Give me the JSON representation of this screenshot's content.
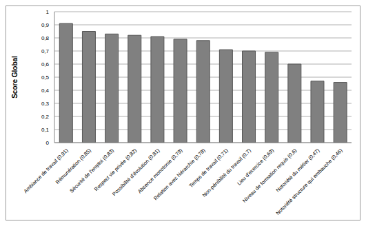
{
  "chart_data": {
    "type": "bar",
    "categories": [
      "Ambiance de travail (0,91)",
      "Rémunération (0,85)",
      "Sécurité de l'emploi (0,83)",
      "Respect vie privée (0,82)",
      "Possibilité d'évolution (0,81)",
      "Absence monotonie (0,79)",
      "Relation avec hiérarchie (0,78)",
      "Temps de travail (0,71)",
      "Non-pénibilité du travail (0,7)",
      "Lieu d'exercice (0,69)",
      "Niveau de formation requis (0,6)",
      "Notoriété du métier (0,47)",
      "Notoriété structure qui embauche (0,46)"
    ],
    "values": [
      0.91,
      0.85,
      0.83,
      0.82,
      0.81,
      0.79,
      0.78,
      0.71,
      0.7,
      0.69,
      0.6,
      0.47,
      0.46
    ],
    "color": "#808080",
    "y_label": "Score Global",
    "ylim": [
      0,
      1
    ],
    "yticks": [
      0,
      {
        "value": 0.1,
        "label": "0,1"
      },
      {
        "value": 0.2,
        "label": "0,2"
      },
      {
        "value": 0.3,
        "label": "0,3"
      },
      {
        "value": 0.4,
        "label": "0,4"
      },
      {
        "value": 0.5,
        "label": "0,5"
      },
      {
        "value": 0.6,
        "label": "0,6"
      },
      {
        "value": 0.7,
        "label": "0,7"
      },
      {
        "value": 0.8,
        "label": "0,8"
      },
      {
        "value": 0.9,
        "label": "0,9"
      },
      1
    ],
    "grid": true
  }
}
